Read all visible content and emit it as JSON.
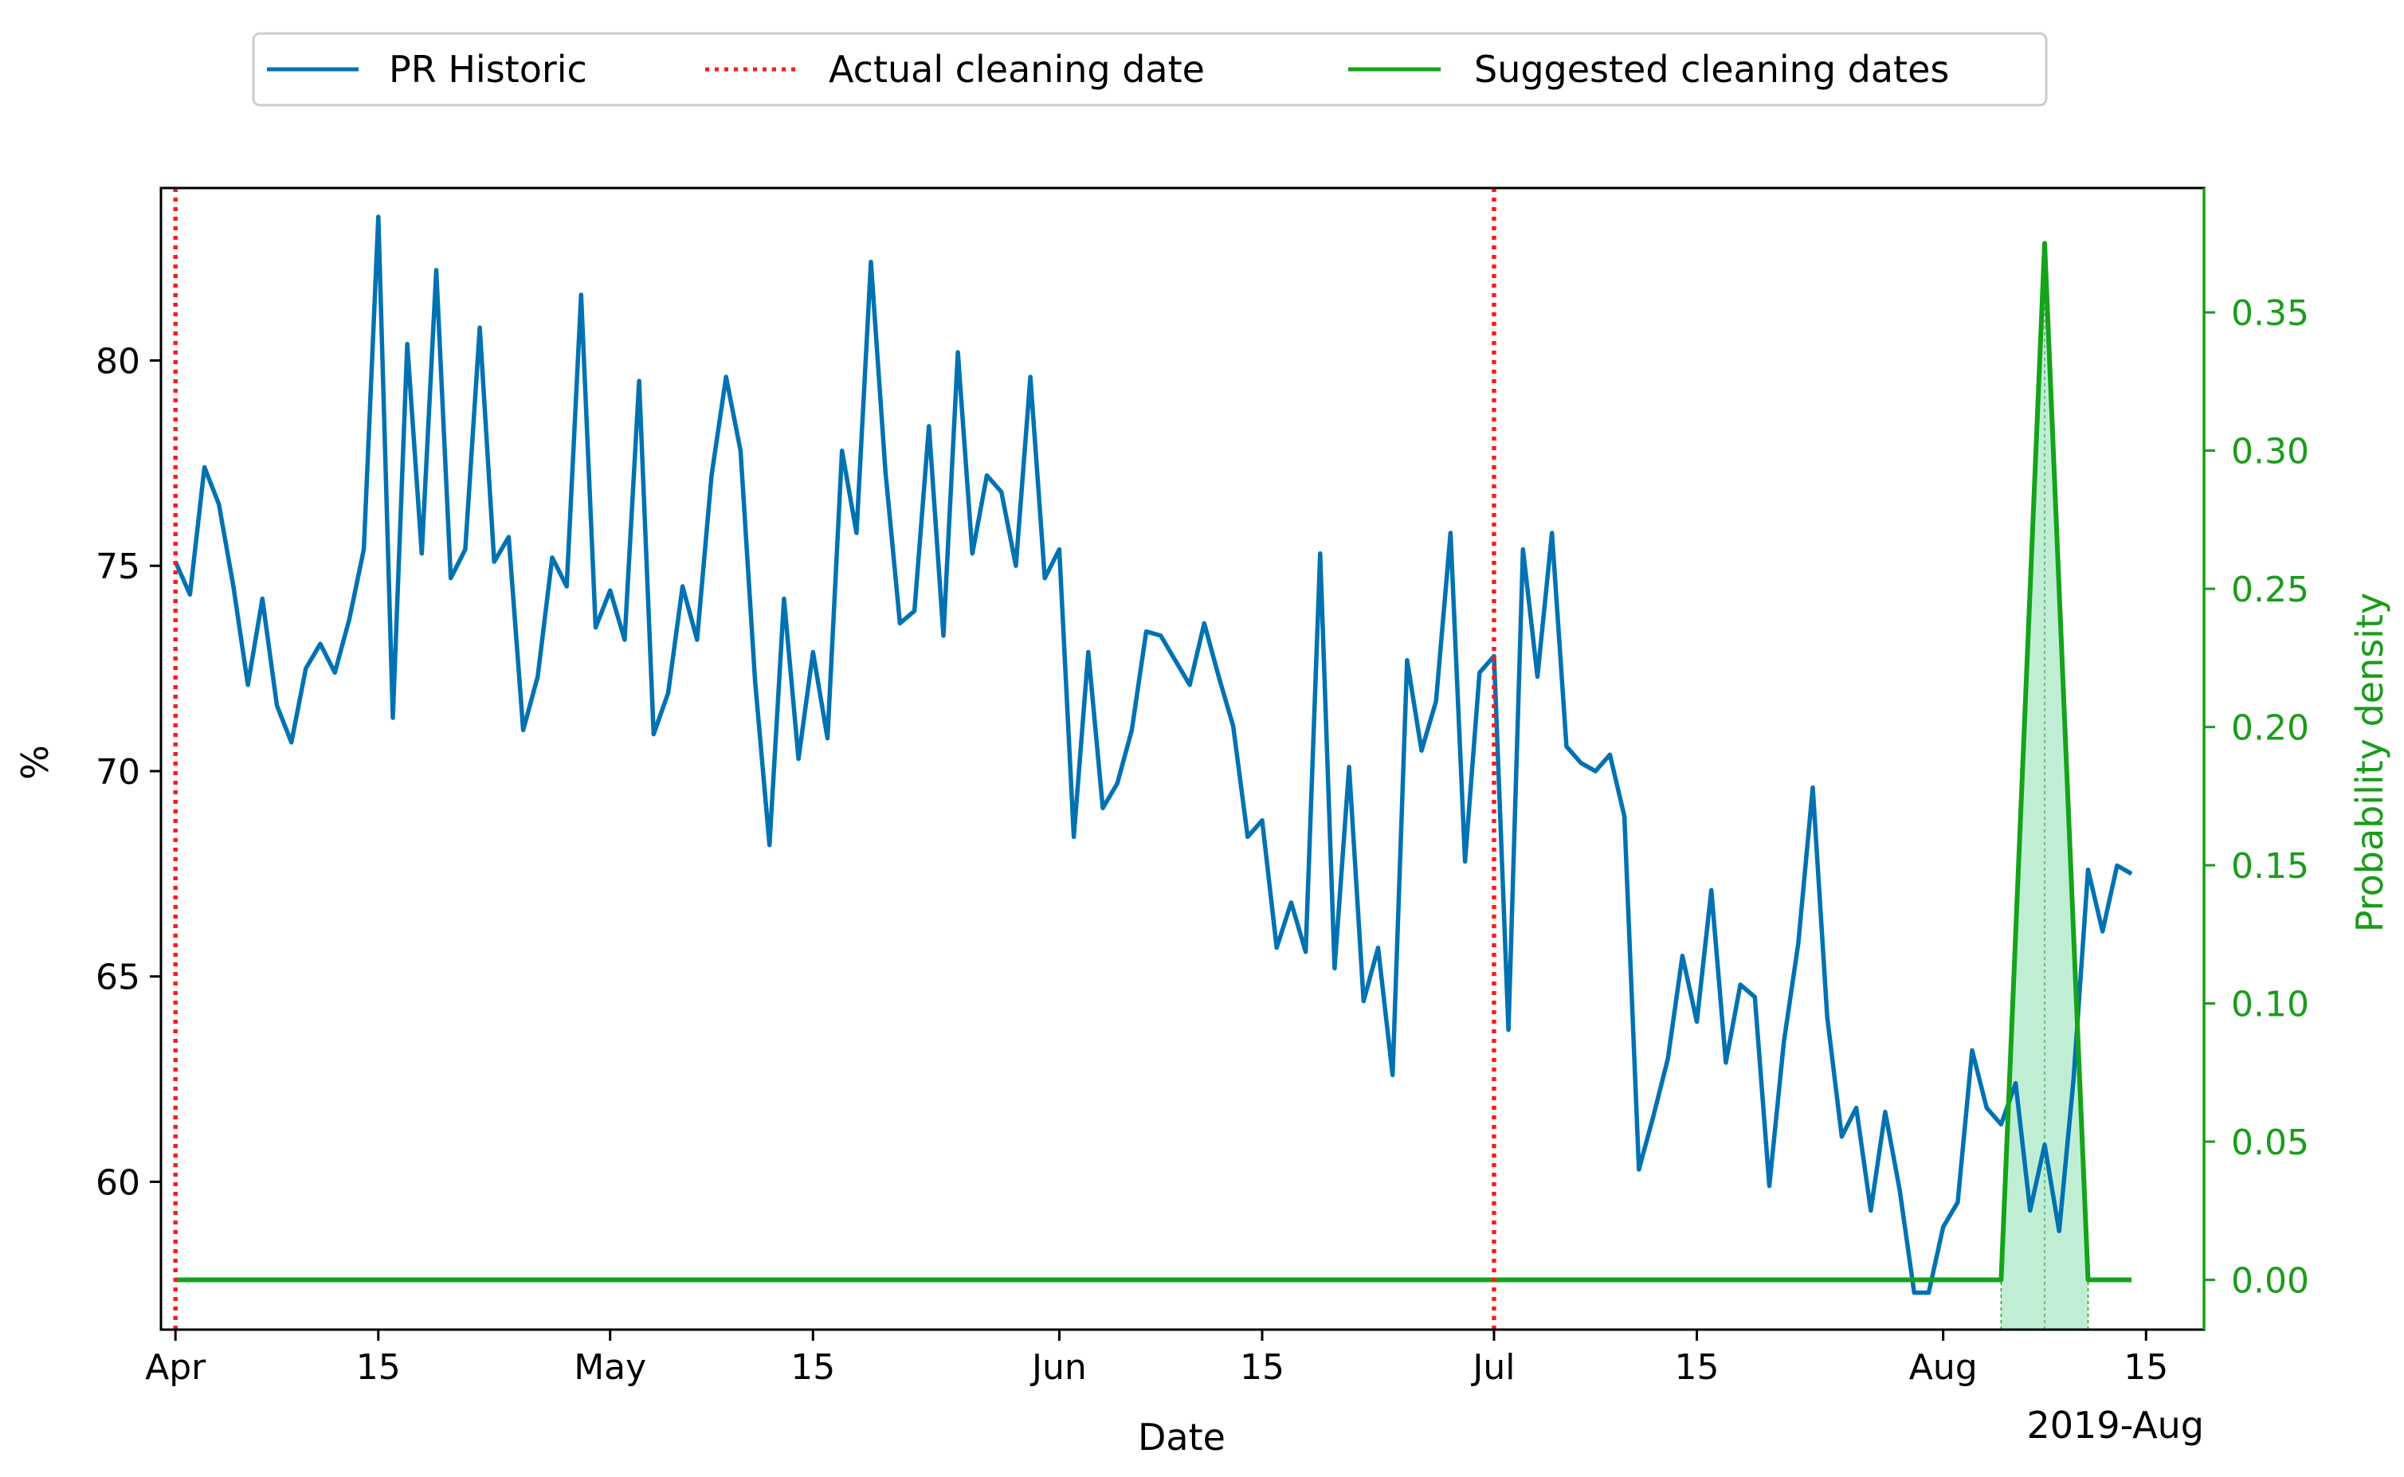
{
  "chart_data": {
    "type": "line",
    "xlabel": "Date",
    "ylabel": "%",
    "y2label": "Probability density",
    "xlim": [
      "2019-03-31",
      "2019-08-19"
    ],
    "ylim": [
      56.4,
      84.2
    ],
    "y2lim": [
      -0.018,
      0.395
    ],
    "x_ticks": [
      {
        "date": "2019-04-01",
        "label": "Apr"
      },
      {
        "date": "2019-04-15",
        "label": "15"
      },
      {
        "date": "2019-05-01",
        "label": "May"
      },
      {
        "date": "2019-05-15",
        "label": "15"
      },
      {
        "date": "2019-06-01",
        "label": "Jun"
      },
      {
        "date": "2019-06-15",
        "label": "15"
      },
      {
        "date": "2019-07-01",
        "label": "Jul"
      },
      {
        "date": "2019-07-15",
        "label": "15"
      },
      {
        "date": "2019-08-01",
        "label": "Aug"
      },
      {
        "date": "2019-08-15",
        "label": "15"
      }
    ],
    "x_offset_label": "2019-Aug",
    "y_ticks": [
      60,
      65,
      70,
      75,
      80
    ],
    "y2_ticks": [
      "0.00",
      "0.05",
      "0.10",
      "0.15",
      "0.20",
      "0.25",
      "0.30",
      "0.35"
    ],
    "legend_position": "top-center, above plot",
    "colors": {
      "historic": "#0072b2",
      "cleaning": "#ff1a1a",
      "suggested": "#15a31a",
      "fill": "#b9ecd0",
      "right_axis": "#1a9c1a"
    },
    "series": [
      {
        "name": "PR Historic",
        "style": "solid",
        "start_date": "2019-04-01",
        "values": [
          75.1,
          74.3,
          77.4,
          76.5,
          74.5,
          72.1,
          74.2,
          71.6,
          70.7,
          72.5,
          73.1,
          72.4,
          73.7,
          75.4,
          83.5,
          71.3,
          80.4,
          75.3,
          82.2,
          74.7,
          75.4,
          80.8,
          75.1,
          75.7,
          71.0,
          72.3,
          75.2,
          74.5,
          81.6,
          73.5,
          74.4,
          73.2,
          79.5,
          70.9,
          71.9,
          74.5,
          73.2,
          77.2,
          79.6,
          77.8,
          72.2,
          68.2,
          74.2,
          70.3,
          72.9,
          70.8,
          77.8,
          75.8,
          82.4,
          77.3,
          73.6,
          73.9,
          78.4,
          73.3,
          80.2,
          75.3,
          77.2,
          76.8,
          75.0,
          79.6,
          74.7,
          75.4,
          68.4,
          72.9,
          69.1,
          69.7,
          71.0,
          73.4,
          73.3,
          72.7,
          72.1,
          73.6,
          72.3,
          71.1,
          68.4,
          68.8,
          65.7,
          66.8,
          65.6,
          75.3,
          65.2,
          70.1,
          64.4,
          65.7,
          62.6,
          72.7,
          70.5,
          71.7,
          75.8,
          67.8,
          72.4,
          72.8,
          63.7,
          75.4,
          72.3,
          75.8,
          70.6,
          70.2,
          70.0,
          70.4,
          68.9,
          60.3,
          61.6,
          63.0,
          65.5,
          63.9,
          67.1,
          62.9,
          64.8,
          64.5,
          59.9,
          63.4,
          65.8,
          69.6,
          64.0,
          61.1,
          61.8,
          59.3,
          61.7,
          59.8,
          57.3,
          57.3,
          58.9,
          59.5,
          63.2,
          61.8,
          61.4,
          62.4,
          59.3,
          60.9,
          58.8,
          62.5,
          67.6,
          66.1,
          67.7,
          67.5
        ]
      },
      {
        "name": "Actual cleaning date",
        "style": "dotted",
        "dates": [
          "2019-04-01",
          "2019-07-01"
        ]
      },
      {
        "name": "Suggested cleaning dates",
        "style": "solid",
        "points": [
          [
            "2019-04-01",
            0.0
          ],
          [
            "2019-08-05",
            0.0
          ],
          [
            "2019-08-08",
            0.375
          ],
          [
            "2019-08-11",
            0.0
          ],
          [
            "2019-08-14",
            0.0
          ]
        ],
        "fill_range": [
          "2019-08-05",
          "2019-08-11"
        ],
        "peak_date": "2019-08-08"
      }
    ]
  }
}
